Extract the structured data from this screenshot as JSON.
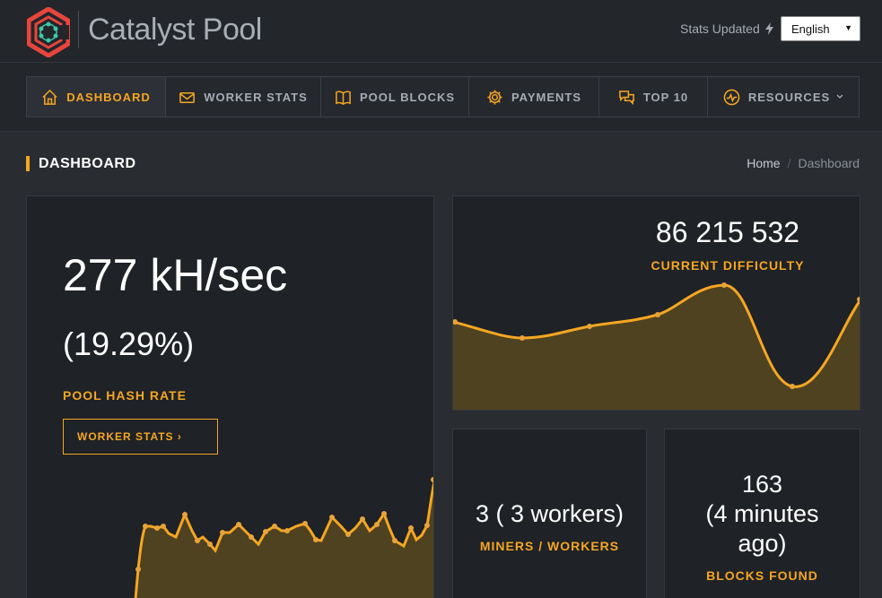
{
  "header": {
    "brand": "Catalyst Pool",
    "stats_updated": "Stats Updated",
    "language": "English"
  },
  "nav": {
    "items": [
      {
        "label": "DASHBOARD",
        "icon": "home-icon",
        "active": true
      },
      {
        "label": "WORKER STATS",
        "icon": "envelope-icon",
        "active": false
      },
      {
        "label": "POOL BLOCKS",
        "icon": "book-icon",
        "active": false
      },
      {
        "label": "PAYMENTS",
        "icon": "gear-icon",
        "active": false
      },
      {
        "label": "TOP 10",
        "icon": "chat-icon",
        "active": false
      },
      {
        "label": "RESOURCES",
        "icon": "pulse-icon",
        "active": false
      }
    ]
  },
  "page": {
    "title": "DASHBOARD",
    "breadcrumb": [
      "Home",
      "Dashboard"
    ]
  },
  "hashrate": {
    "value": "277 kH/sec",
    "percent": "(19.29%)",
    "label": "POOL HASH RATE",
    "button": "WORKER STATS ›"
  },
  "difficulty": {
    "value": "86 215 532",
    "label": "CURRENT DIFFICULTY"
  },
  "miners": {
    "value": "3 ( 3 workers)",
    "label": "MINERS / WORKERS"
  },
  "blocks": {
    "value_line1": "163",
    "value_line2": "(4 minutes",
    "value_line3": "ago)",
    "label": "BLOCKS FOUND"
  },
  "colors": {
    "accent": "#f5a623",
    "background": "#292c31",
    "card": "#1f2226"
  }
}
